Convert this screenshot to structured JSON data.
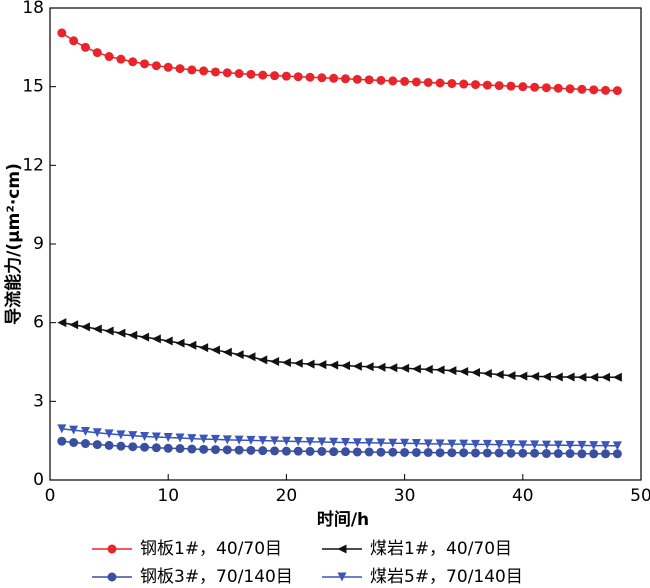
{
  "chart_data": {
    "type": "line",
    "x_label": "时间/h",
    "y_label": "导流能力/(μm²·cm)",
    "x": [
      1,
      2,
      3,
      4,
      5,
      6,
      7,
      8,
      9,
      10,
      11,
      12,
      13,
      14,
      15,
      16,
      17,
      18,
      19,
      20,
      21,
      22,
      23,
      24,
      25,
      26,
      27,
      28,
      29,
      30,
      31,
      32,
      33,
      34,
      35,
      36,
      37,
      38,
      39,
      40,
      41,
      42,
      43,
      44,
      45,
      46,
      47,
      48
    ],
    "series": [
      {
        "name": "钢板1#，40/70目",
        "color": "#e8252b",
        "marker": "circle",
        "values": [
          17.05,
          16.75,
          16.5,
          16.3,
          16.15,
          16.05,
          15.95,
          15.87,
          15.8,
          15.74,
          15.69,
          15.64,
          15.6,
          15.56,
          15.53,
          15.5,
          15.47,
          15.44,
          15.42,
          15.4,
          15.38,
          15.36,
          15.34,
          15.32,
          15.3,
          15.28,
          15.26,
          15.24,
          15.22,
          15.2,
          15.18,
          15.16,
          15.14,
          15.12,
          15.1,
          15.08,
          15.06,
          15.04,
          15.02,
          15.0,
          14.98,
          14.96,
          14.94,
          14.92,
          14.9,
          14.88,
          14.86,
          14.85
        ]
      },
      {
        "name": "煤岩1#，40/70目",
        "color": "#111111",
        "marker": "triangle-left",
        "values": [
          6.0,
          5.92,
          5.84,
          5.76,
          5.68,
          5.6,
          5.52,
          5.45,
          5.38,
          5.3,
          5.22,
          5.14,
          5.05,
          4.96,
          4.87,
          4.78,
          4.7,
          4.58,
          4.52,
          4.48,
          4.45,
          4.42,
          4.4,
          4.38,
          4.36,
          4.34,
          4.32,
          4.3,
          4.28,
          4.26,
          4.24,
          4.22,
          4.2,
          4.17,
          4.14,
          4.1,
          4.06,
          4.02,
          3.98,
          3.96,
          3.95,
          3.94,
          3.93,
          3.93,
          3.92,
          3.92,
          3.92,
          3.92
        ]
      },
      {
        "name": "钢板3#，70/140目",
        "color": "#3a4fa0",
        "marker": "circle",
        "values": [
          1.48,
          1.43,
          1.39,
          1.35,
          1.32,
          1.29,
          1.27,
          1.25,
          1.23,
          1.21,
          1.2,
          1.18,
          1.17,
          1.16,
          1.15,
          1.14,
          1.13,
          1.12,
          1.11,
          1.1,
          1.1,
          1.09,
          1.09,
          1.08,
          1.08,
          1.07,
          1.07,
          1.06,
          1.06,
          1.05,
          1.05,
          1.05,
          1.04,
          1.04,
          1.04,
          1.03,
          1.03,
          1.03,
          1.02,
          1.02,
          1.02,
          1.01,
          1.01,
          1.01,
          1.0,
          1.0,
          1.0,
          1.0
        ]
      },
      {
        "name": "煤岩5#，70/140目",
        "color": "#3d55b8",
        "marker": "triangle-down",
        "values": [
          1.95,
          1.9,
          1.85,
          1.8,
          1.76,
          1.72,
          1.69,
          1.66,
          1.64,
          1.62,
          1.6,
          1.58,
          1.56,
          1.55,
          1.53,
          1.52,
          1.51,
          1.5,
          1.49,
          1.48,
          1.47,
          1.46,
          1.45,
          1.44,
          1.43,
          1.42,
          1.42,
          1.41,
          1.4,
          1.4,
          1.39,
          1.38,
          1.38,
          1.37,
          1.37,
          1.36,
          1.36,
          1.35,
          1.35,
          1.34,
          1.34,
          1.33,
          1.33,
          1.32,
          1.32,
          1.31,
          1.31,
          1.3
        ]
      }
    ],
    "xlim": [
      0,
      50
    ],
    "xticks": [
      0,
      10,
      20,
      30,
      40,
      50
    ],
    "ylim": [
      0,
      18
    ],
    "yticks": [
      0,
      3,
      6,
      9,
      12,
      15,
      18
    ]
  }
}
